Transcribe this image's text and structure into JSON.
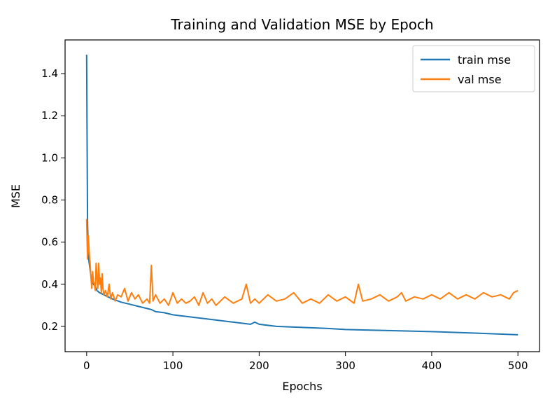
{
  "chart_data": {
    "type": "line",
    "title": "Training and Validation MSE by Epoch",
    "xlabel": "Epochs",
    "ylabel": "MSE",
    "xlim": [
      -25,
      525
    ],
    "ylim": [
      0.08,
      1.56
    ],
    "xticks": [
      0,
      100,
      200,
      300,
      400,
      500
    ],
    "yticks": [
      0.2,
      0.4,
      0.6,
      0.8,
      1.0,
      1.2,
      1.4
    ],
    "xtick_labels": [
      "0",
      "100",
      "200",
      "300",
      "400",
      "500"
    ],
    "ytick_labels": [
      "0.2",
      "0.4",
      "0.6",
      "0.8",
      "1.0",
      "1.2",
      "1.4"
    ],
    "grid": false,
    "legend_position": "top-right",
    "series": [
      {
        "name": "train mse",
        "color": "#1f77b4",
        "x": [
          0,
          1,
          2,
          3,
          4,
          5,
          6,
          8,
          10,
          12,
          15,
          20,
          25,
          30,
          40,
          50,
          60,
          70,
          75,
          80,
          90,
          100,
          120,
          140,
          160,
          180,
          190,
          195,
          200,
          220,
          250,
          280,
          300,
          350,
          400,
          450,
          500
        ],
        "y": [
          1.49,
          0.7,
          0.53,
          0.5,
          0.47,
          0.44,
          0.42,
          0.4,
          0.39,
          0.37,
          0.36,
          0.35,
          0.34,
          0.33,
          0.315,
          0.305,
          0.295,
          0.285,
          0.28,
          0.27,
          0.265,
          0.255,
          0.245,
          0.235,
          0.225,
          0.215,
          0.21,
          0.22,
          0.21,
          0.2,
          0.195,
          0.19,
          0.185,
          0.18,
          0.175,
          0.168,
          0.16
        ]
      },
      {
        "name": "val mse",
        "color": "#ff7f0e",
        "x": [
          0,
          1,
          2,
          3,
          4,
          5,
          6,
          7,
          8,
          9,
          10,
          11,
          12,
          13,
          14,
          15,
          16,
          17,
          18,
          19,
          20,
          22,
          24,
          26,
          28,
          30,
          33,
          36,
          40,
          44,
          48,
          52,
          56,
          60,
          65,
          70,
          73,
          75,
          77,
          80,
          85,
          90,
          95,
          100,
          105,
          110,
          115,
          120,
          125,
          130,
          135,
          140,
          145,
          150,
          160,
          170,
          180,
          185,
          190,
          195,
          200,
          210,
          220,
          230,
          240,
          250,
          260,
          270,
          280,
          290,
          300,
          310,
          315,
          320,
          330,
          340,
          350,
          360,
          365,
          370,
          380,
          390,
          400,
          410,
          420,
          430,
          440,
          450,
          460,
          470,
          480,
          490,
          495,
          500
        ],
        "y": [
          0.71,
          0.52,
          0.63,
          0.55,
          0.5,
          0.43,
          0.38,
          0.46,
          0.41,
          0.4,
          0.37,
          0.5,
          0.43,
          0.38,
          0.5,
          0.4,
          0.43,
          0.36,
          0.45,
          0.38,
          0.35,
          0.37,
          0.34,
          0.4,
          0.33,
          0.36,
          0.32,
          0.35,
          0.34,
          0.38,
          0.32,
          0.36,
          0.33,
          0.35,
          0.31,
          0.33,
          0.31,
          0.49,
          0.32,
          0.35,
          0.31,
          0.33,
          0.3,
          0.36,
          0.31,
          0.33,
          0.31,
          0.32,
          0.34,
          0.3,
          0.36,
          0.31,
          0.33,
          0.3,
          0.34,
          0.31,
          0.33,
          0.4,
          0.31,
          0.33,
          0.31,
          0.35,
          0.32,
          0.33,
          0.36,
          0.31,
          0.33,
          0.31,
          0.35,
          0.32,
          0.34,
          0.31,
          0.4,
          0.32,
          0.33,
          0.35,
          0.32,
          0.34,
          0.36,
          0.32,
          0.34,
          0.33,
          0.35,
          0.33,
          0.36,
          0.33,
          0.35,
          0.33,
          0.36,
          0.34,
          0.35,
          0.33,
          0.36,
          0.37
        ]
      }
    ]
  }
}
